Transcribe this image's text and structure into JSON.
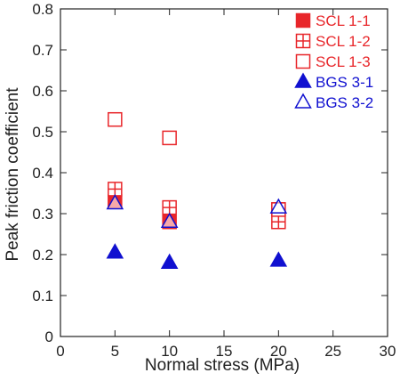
{
  "chart_data": {
    "type": "scatter",
    "title": "",
    "xlabel": "Normal stress (MPa)",
    "ylabel": "Peak friction coefficient",
    "xlim": [
      0,
      30
    ],
    "ylim": [
      0,
      0.8
    ],
    "x_ticks": [
      "0",
      "5",
      "10",
      "15",
      "20",
      "25",
      "30"
    ],
    "y_ticks": [
      "0",
      "0.1",
      "0.2",
      "0.3",
      "0.4",
      "0.5",
      "0.6",
      "0.7",
      "0.8"
    ],
    "grid": false,
    "legend_position": "top-right",
    "series": [
      {
        "name": "SCL 1-1",
        "marker": "filled-square",
        "color": "#e8262a",
        "points": [
          {
            "x": 5,
            "y": 0.33
          },
          {
            "x": 10,
            "y": 0.28
          },
          {
            "x": 20,
            "y": 0.31
          }
        ]
      },
      {
        "name": "SCL 1-2",
        "marker": "crossed-square",
        "color": "#e8262a",
        "points": [
          {
            "x": 5,
            "y": 0.36
          },
          {
            "x": 10,
            "y": 0.315
          },
          {
            "x": 20,
            "y": 0.28
          }
        ]
      },
      {
        "name": "SCL 1-3",
        "marker": "open-square",
        "color": "#e8262a",
        "points": [
          {
            "x": 5,
            "y": 0.53
          },
          {
            "x": 10,
            "y": 0.485
          },
          {
            "x": 20,
            "y": 0.31
          }
        ]
      },
      {
        "name": "BGS 3-1",
        "marker": "filled-triangle",
        "color": "#1010d0",
        "points": [
          {
            "x": 5,
            "y": 0.205
          },
          {
            "x": 10,
            "y": 0.18
          },
          {
            "x": 20,
            "y": 0.185
          }
        ]
      },
      {
        "name": "BGS 3-2",
        "marker": "open-triangle",
        "color": "#1010d0",
        "points": [
          {
            "x": 5,
            "y": 0.325
          },
          {
            "x": 10,
            "y": 0.28
          },
          {
            "x": 20,
            "y": 0.315
          }
        ]
      }
    ]
  }
}
